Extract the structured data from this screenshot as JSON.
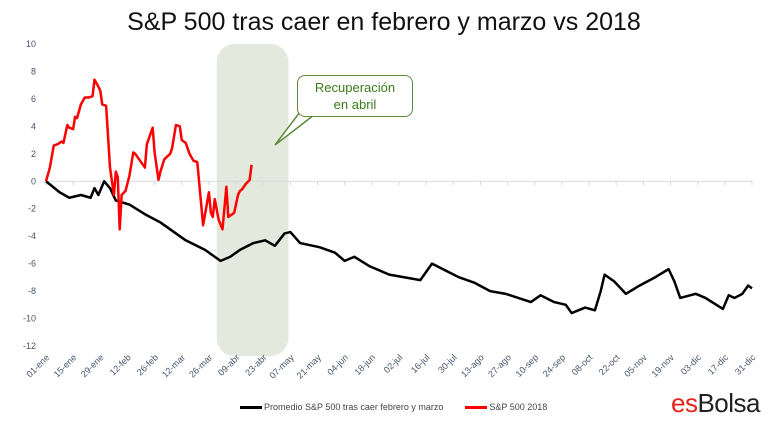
{
  "chart_data": {
    "type": "line",
    "title": "S&P 500 tras caer en febrero y marzo vs 2018",
    "xlabel": "",
    "ylabel": "",
    "ylim": [
      -12,
      10
    ],
    "yticks": [
      10,
      8,
      6,
      4,
      2,
      0,
      -2,
      -4,
      -6,
      -8,
      -10,
      -12
    ],
    "xlim_days": [
      0,
      364
    ],
    "x_unit": "day of year",
    "xtick_labels": [
      "01-ene",
      "15-ene",
      "29-ene",
      "12-feb",
      "26-feb",
      "12-mar",
      "26-mar",
      "09-abr",
      "23-abr",
      "07-may",
      "21-may",
      "04-jun",
      "18-jun",
      "02-jul",
      "16-jul",
      "30-jul",
      "13-ago",
      "27-ago",
      "10-sep",
      "24-sep",
      "08-oct",
      "22-oct",
      "05-nov",
      "19-nov",
      "03-dic",
      "17-dic",
      "31-dic"
    ],
    "highlight_days": [
      88,
      125
    ],
    "annotation": "Recuperación\nen abril",
    "legend_position": "bottom",
    "series": [
      {
        "name": "Promedio S&P 500 tras caer febrero y marzo",
        "color": "#000000",
        "x": [
          0,
          7,
          12,
          18,
          23,
          25,
          27,
          30,
          33,
          36,
          43,
          51,
          59,
          67,
          72,
          82,
          90,
          95,
          100,
          107,
          113,
          118,
          123,
          126,
          131,
          141,
          149,
          154,
          159,
          167,
          177,
          185,
          193,
          199,
          206,
          213,
          221,
          229,
          237,
          250,
          255,
          262,
          268,
          271,
          278,
          283,
          286,
          288,
          293,
          299,
          306,
          314,
          321,
          324,
          327,
          335,
          340,
          349,
          352,
          355,
          359,
          362,
          364
        ],
        "y": [
          0,
          -0.8,
          -1.2,
          -1.0,
          -1.2,
          -0.5,
          -1.0,
          0,
          -0.5,
          -1.4,
          -1.7,
          -2.4,
          -3.0,
          -3.8,
          -4.3,
          -5.0,
          -5.8,
          -5.5,
          -5.0,
          -4.5,
          -4.3,
          -4.7,
          -3.8,
          -3.7,
          -4.5,
          -4.8,
          -5.2,
          -5.8,
          -5.5,
          -6.2,
          -6.8,
          -7.0,
          -7.2,
          -6.0,
          -6.5,
          -7.0,
          -7.4,
          -8.0,
          -8.2,
          -8.8,
          -8.3,
          -8.8,
          -9.0,
          -9.6,
          -9.2,
          -9.4,
          -8.0,
          -6.8,
          -7.3,
          -8.2,
          -7.6,
          -7.0,
          -6.4,
          -7.3,
          -8.5,
          -8.2,
          -8.5,
          -9.3,
          -8.3,
          -8.5,
          -8.2,
          -7.6,
          -7.8
        ]
      },
      {
        "name": "S&P 500 2018",
        "color": "#ff0000",
        "x": [
          0,
          2,
          4,
          6,
          8,
          9,
          11,
          12,
          14,
          15,
          16,
          18,
          20,
          22,
          24,
          25,
          27,
          28,
          29,
          31,
          33,
          35,
          36,
          37,
          38,
          39,
          41,
          43,
          45,
          46,
          48,
          51,
          52,
          55,
          56,
          58,
          59,
          61,
          64,
          65,
          67,
          69,
          70,
          72,
          74,
          76,
          78,
          81,
          84,
          85,
          86,
          87,
          89,
          91,
          93,
          94,
          97,
          99,
          100,
          101,
          103,
          105,
          106
        ],
        "y": [
          0,
          1,
          2.6,
          2.7,
          2.9,
          2.8,
          4.1,
          3.9,
          3.8,
          4.7,
          4.6,
          5.6,
          6.1,
          6.1,
          6.2,
          7.4,
          6.9,
          6.6,
          5.6,
          5.5,
          1.0,
          -1.0,
          0.7,
          0.3,
          -3.5,
          -1.0,
          -0.7,
          0.4,
          2.1,
          2.0,
          1.6,
          1.0,
          2.7,
          3.9,
          2.1,
          0.1,
          0.7,
          1.6,
          2.0,
          2.4,
          4.1,
          4.0,
          3.0,
          2.8,
          2.0,
          1.5,
          1.4,
          -3.2,
          -0.8,
          -2.3,
          -2.6,
          -1.3,
          -2.8,
          -3.5,
          -0.4,
          -2.6,
          -2.3,
          -1.0,
          -0.7,
          -0.6,
          -0.2,
          0.1,
          1.2
        ]
      }
    ]
  },
  "logo": {
    "es": "es",
    "bolsa": "Bolsa"
  }
}
